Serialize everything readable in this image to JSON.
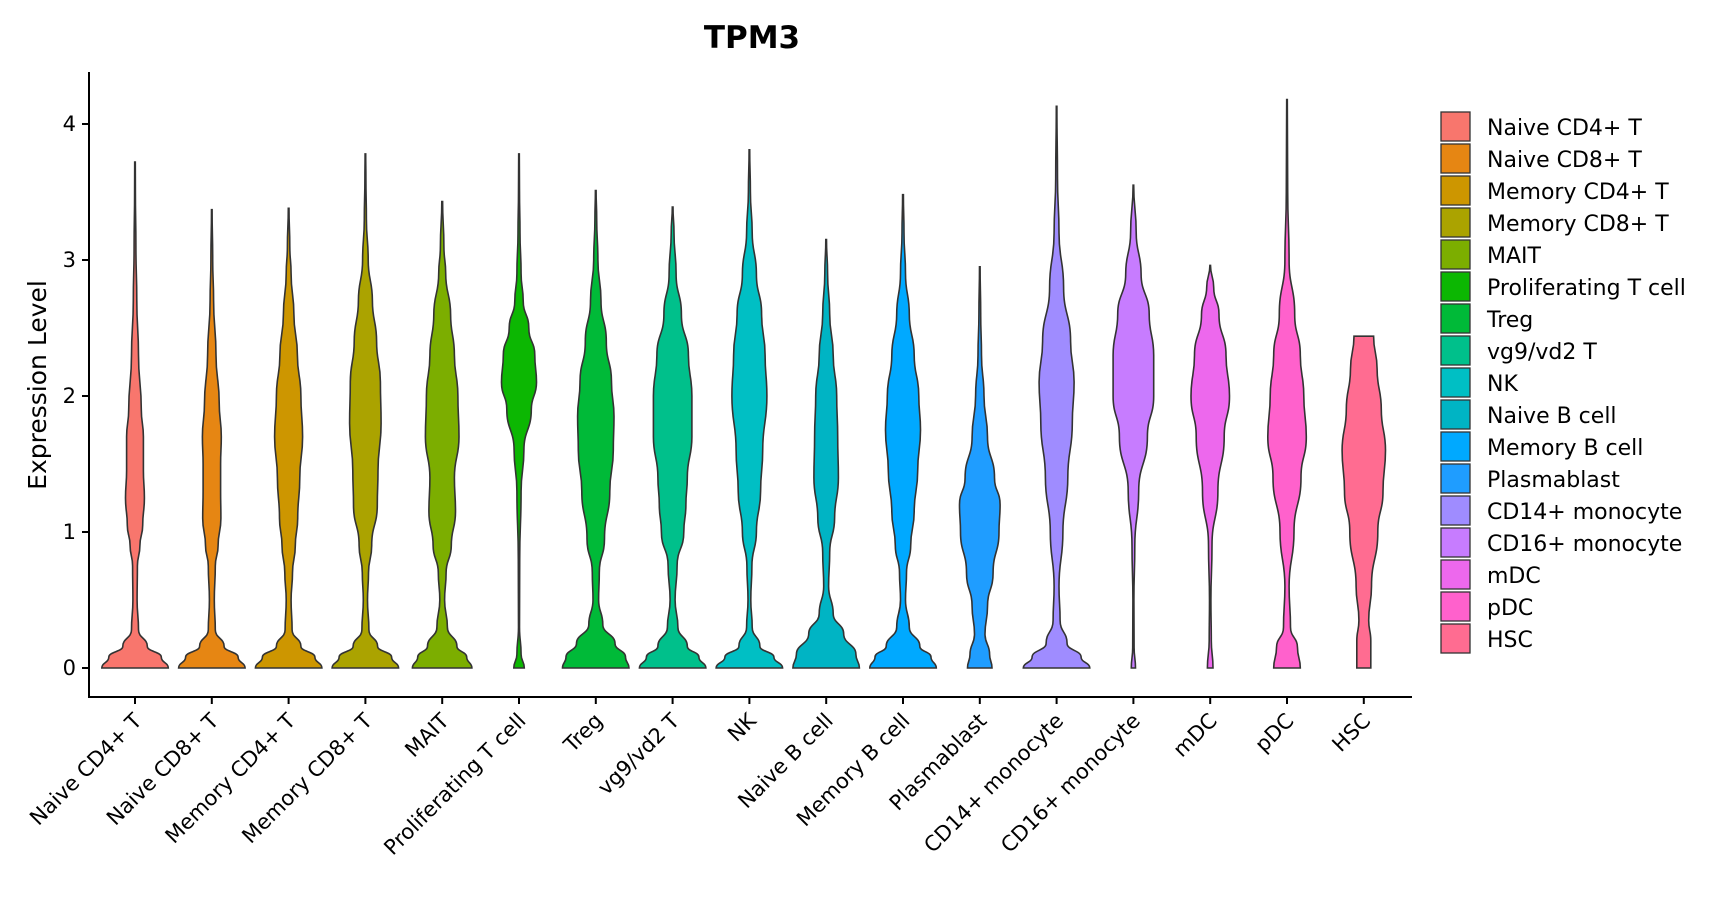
{
  "chart_data": {
    "type": "violin",
    "title": "TPM3",
    "xlabel": "",
    "ylabel": "Expression Level",
    "ylim": [
      -0.2,
      4.4
    ],
    "yticks": [
      0,
      1,
      2,
      3,
      4
    ],
    "grid": false,
    "legend_position": "right",
    "categories": [
      {
        "name": "Naive CD4+ T",
        "color": "#F8766D",
        "max": 3.72,
        "density": [
          [
            0,
            0.95
          ],
          [
            0.08,
            0.75
          ],
          [
            0.16,
            0.35
          ],
          [
            0.28,
            0.1
          ],
          [
            0.5,
            0.06
          ],
          [
            0.75,
            0.07
          ],
          [
            0.9,
            0.14
          ],
          [
            1.05,
            0.22
          ],
          [
            1.25,
            0.27
          ],
          [
            1.45,
            0.24
          ],
          [
            1.7,
            0.24
          ],
          [
            1.9,
            0.18
          ],
          [
            2.3,
            0.1
          ],
          [
            2.7,
            0.05
          ],
          [
            3.1,
            0.025
          ],
          [
            3.5,
            0.012
          ],
          [
            3.72,
            0.008
          ]
        ]
      },
      {
        "name": "Naive CD8+ T",
        "color": "#E68613",
        "max": 3.37,
        "density": [
          [
            0,
            0.95
          ],
          [
            0.08,
            0.75
          ],
          [
            0.16,
            0.35
          ],
          [
            0.28,
            0.1
          ],
          [
            0.5,
            0.07
          ],
          [
            0.75,
            0.1
          ],
          [
            0.9,
            0.18
          ],
          [
            1.1,
            0.26
          ],
          [
            1.3,
            0.25
          ],
          [
            1.5,
            0.25
          ],
          [
            1.7,
            0.27
          ],
          [
            1.95,
            0.21
          ],
          [
            2.3,
            0.12
          ],
          [
            2.7,
            0.05
          ],
          [
            3.0,
            0.025
          ],
          [
            3.37,
            0.008
          ]
        ]
      },
      {
        "name": "Memory CD4+ T",
        "color": "#CD9600",
        "max": 3.38,
        "density": [
          [
            0,
            0.95
          ],
          [
            0.08,
            0.75
          ],
          [
            0.16,
            0.35
          ],
          [
            0.28,
            0.1
          ],
          [
            0.5,
            0.07
          ],
          [
            0.7,
            0.11
          ],
          [
            0.9,
            0.19
          ],
          [
            1.1,
            0.26
          ],
          [
            1.4,
            0.32
          ],
          [
            1.7,
            0.4
          ],
          [
            2.0,
            0.35
          ],
          [
            2.3,
            0.25
          ],
          [
            2.6,
            0.15
          ],
          [
            2.9,
            0.07
          ],
          [
            3.1,
            0.035
          ],
          [
            3.38,
            0.01
          ]
        ]
      },
      {
        "name": "Memory CD8+ T",
        "color": "#ABA300",
        "max": 3.78,
        "density": [
          [
            0,
            0.95
          ],
          [
            0.08,
            0.75
          ],
          [
            0.16,
            0.35
          ],
          [
            0.28,
            0.1
          ],
          [
            0.5,
            0.06
          ],
          [
            0.7,
            0.09
          ],
          [
            0.9,
            0.18
          ],
          [
            1.2,
            0.34
          ],
          [
            1.45,
            0.36
          ],
          [
            1.8,
            0.45
          ],
          [
            2.1,
            0.43
          ],
          [
            2.4,
            0.32
          ],
          [
            2.7,
            0.2
          ],
          [
            3.0,
            0.08
          ],
          [
            3.3,
            0.03
          ],
          [
            3.6,
            0.015
          ],
          [
            3.78,
            0.008
          ]
        ]
      },
      {
        "name": "MAIT",
        "color": "#7CAE00",
        "max": 3.43,
        "density": [
          [
            0,
            0.85
          ],
          [
            0.08,
            0.7
          ],
          [
            0.16,
            0.42
          ],
          [
            0.3,
            0.15
          ],
          [
            0.5,
            0.07
          ],
          [
            0.7,
            0.11
          ],
          [
            0.9,
            0.26
          ],
          [
            1.15,
            0.38
          ],
          [
            1.4,
            0.35
          ],
          [
            1.7,
            0.48
          ],
          [
            2.0,
            0.45
          ],
          [
            2.3,
            0.35
          ],
          [
            2.6,
            0.24
          ],
          [
            2.9,
            0.1
          ],
          [
            3.1,
            0.05
          ],
          [
            3.43,
            0.01
          ]
        ]
      },
      {
        "name": "Proliferating T cell",
        "color": "#0CB702",
        "max": 3.78,
        "density": [
          [
            0,
            0.15
          ],
          [
            0.1,
            0.06
          ],
          [
            0.3,
            0.015
          ],
          [
            0.8,
            0.02
          ],
          [
            1.3,
            0.06
          ],
          [
            1.6,
            0.14
          ],
          [
            1.9,
            0.35
          ],
          [
            2.1,
            0.5
          ],
          [
            2.3,
            0.45
          ],
          [
            2.5,
            0.28
          ],
          [
            2.7,
            0.12
          ],
          [
            2.9,
            0.06
          ],
          [
            3.2,
            0.03
          ],
          [
            3.5,
            0.015
          ],
          [
            3.78,
            0.008
          ]
        ]
      },
      {
        "name": "Treg",
        "color": "#00BA38",
        "max": 3.51,
        "density": [
          [
            0,
            0.95
          ],
          [
            0.08,
            0.85
          ],
          [
            0.18,
            0.55
          ],
          [
            0.32,
            0.2
          ],
          [
            0.5,
            0.08
          ],
          [
            0.7,
            0.1
          ],
          [
            0.95,
            0.25
          ],
          [
            1.3,
            0.4
          ],
          [
            1.6,
            0.5
          ],
          [
            1.85,
            0.52
          ],
          [
            2.1,
            0.45
          ],
          [
            2.4,
            0.3
          ],
          [
            2.7,
            0.15
          ],
          [
            3.0,
            0.06
          ],
          [
            3.3,
            0.025
          ],
          [
            3.51,
            0.01
          ]
        ]
      },
      {
        "name": "vg9/vd2 T",
        "color": "#00C08B",
        "max": 3.39,
        "density": [
          [
            0,
            0.95
          ],
          [
            0.08,
            0.75
          ],
          [
            0.16,
            0.42
          ],
          [
            0.3,
            0.15
          ],
          [
            0.5,
            0.07
          ],
          [
            0.75,
            0.13
          ],
          [
            1.0,
            0.32
          ],
          [
            1.2,
            0.38
          ],
          [
            1.4,
            0.42
          ],
          [
            1.7,
            0.55
          ],
          [
            2.0,
            0.55
          ],
          [
            2.3,
            0.45
          ],
          [
            2.6,
            0.25
          ],
          [
            2.9,
            0.1
          ],
          [
            3.2,
            0.04
          ],
          [
            3.39,
            0.01
          ]
        ]
      },
      {
        "name": "NK",
        "color": "#00BFC4",
        "max": 3.81,
        "density": [
          [
            0,
            0.95
          ],
          [
            0.08,
            0.7
          ],
          [
            0.16,
            0.3
          ],
          [
            0.3,
            0.08
          ],
          [
            0.5,
            0.04
          ],
          [
            0.75,
            0.07
          ],
          [
            1.0,
            0.2
          ],
          [
            1.3,
            0.32
          ],
          [
            1.6,
            0.38
          ],
          [
            2.0,
            0.5
          ],
          [
            2.3,
            0.45
          ],
          [
            2.6,
            0.35
          ],
          [
            2.9,
            0.2
          ],
          [
            3.2,
            0.08
          ],
          [
            3.5,
            0.03
          ],
          [
            3.81,
            0.008
          ]
        ]
      },
      {
        "name": "Naive B cell",
        "color": "#00B4C4",
        "max": 3.15,
        "density": [
          [
            0,
            0.95
          ],
          [
            0.1,
            0.85
          ],
          [
            0.25,
            0.5
          ],
          [
            0.4,
            0.2
          ],
          [
            0.6,
            0.07
          ],
          [
            0.85,
            0.1
          ],
          [
            1.1,
            0.24
          ],
          [
            1.4,
            0.35
          ],
          [
            1.7,
            0.33
          ],
          [
            2.0,
            0.3
          ],
          [
            2.3,
            0.2
          ],
          [
            2.6,
            0.1
          ],
          [
            2.9,
            0.04
          ],
          [
            3.15,
            0.01
          ]
        ]
      },
      {
        "name": "Memory B cell",
        "color": "#00A9FF",
        "max": 3.48,
        "density": [
          [
            0,
            0.95
          ],
          [
            0.08,
            0.8
          ],
          [
            0.16,
            0.48
          ],
          [
            0.3,
            0.18
          ],
          [
            0.5,
            0.07
          ],
          [
            0.7,
            0.1
          ],
          [
            0.9,
            0.22
          ],
          [
            1.15,
            0.32
          ],
          [
            1.45,
            0.42
          ],
          [
            1.75,
            0.5
          ],
          [
            2.0,
            0.45
          ],
          [
            2.3,
            0.32
          ],
          [
            2.6,
            0.18
          ],
          [
            2.9,
            0.07
          ],
          [
            3.2,
            0.03
          ],
          [
            3.48,
            0.01
          ]
        ]
      },
      {
        "name": "Plasmablast",
        "color": "#1F9DFF",
        "max": 2.95,
        "density": [
          [
            0,
            0.35
          ],
          [
            0.1,
            0.28
          ],
          [
            0.25,
            0.15
          ],
          [
            0.45,
            0.22
          ],
          [
            0.7,
            0.38
          ],
          [
            1.0,
            0.55
          ],
          [
            1.2,
            0.58
          ],
          [
            1.4,
            0.42
          ],
          [
            1.7,
            0.22
          ],
          [
            2.0,
            0.12
          ],
          [
            2.3,
            0.05
          ],
          [
            2.6,
            0.025
          ],
          [
            2.95,
            0.008
          ]
        ]
      },
      {
        "name": "CD14+ monocyte",
        "color": "#9F8CFF",
        "max": 4.13,
        "density": [
          [
            0,
            0.95
          ],
          [
            0.08,
            0.7
          ],
          [
            0.18,
            0.3
          ],
          [
            0.35,
            0.1
          ],
          [
            0.6,
            0.07
          ],
          [
            1.0,
            0.18
          ],
          [
            1.4,
            0.32
          ],
          [
            1.8,
            0.45
          ],
          [
            2.1,
            0.5
          ],
          [
            2.4,
            0.4
          ],
          [
            2.8,
            0.2
          ],
          [
            3.2,
            0.07
          ],
          [
            3.6,
            0.025
          ],
          [
            4.13,
            0.008
          ]
        ]
      },
      {
        "name": "CD16+ monocyte",
        "color": "#C77CFF",
        "max": 3.55,
        "density": [
          [
            0,
            0.06
          ],
          [
            0.15,
            0.02
          ],
          [
            0.5,
            0.015
          ],
          [
            0.9,
            0.04
          ],
          [
            1.3,
            0.15
          ],
          [
            1.7,
            0.4
          ],
          [
            2.0,
            0.58
          ],
          [
            2.3,
            0.58
          ],
          [
            2.6,
            0.45
          ],
          [
            2.9,
            0.22
          ],
          [
            3.2,
            0.08
          ],
          [
            3.55,
            0.008
          ]
        ]
      },
      {
        "name": "mDC",
        "color": "#ED68ED",
        "max": 2.96,
        "density": [
          [
            0,
            0.08
          ],
          [
            0.2,
            0.03
          ],
          [
            0.5,
            0.02
          ],
          [
            0.9,
            0.05
          ],
          [
            1.3,
            0.22
          ],
          [
            1.7,
            0.4
          ],
          [
            2.0,
            0.55
          ],
          [
            2.3,
            0.45
          ],
          [
            2.6,
            0.25
          ],
          [
            2.8,
            0.1
          ],
          [
            2.96,
            0.01
          ]
        ]
      },
      {
        "name": "pDC",
        "color": "#FF61CC",
        "max": 4.18,
        "density": [
          [
            0,
            0.38
          ],
          [
            0.15,
            0.3
          ],
          [
            0.3,
            0.1
          ],
          [
            0.6,
            0.06
          ],
          [
            1.0,
            0.2
          ],
          [
            1.4,
            0.4
          ],
          [
            1.7,
            0.55
          ],
          [
            2.0,
            0.48
          ],
          [
            2.3,
            0.38
          ],
          [
            2.6,
            0.22
          ],
          [
            3.0,
            0.06
          ],
          [
            3.5,
            0.02
          ],
          [
            4.18,
            0.008
          ]
        ]
      },
      {
        "name": "HSC",
        "color": "#FF6C91",
        "max": 2.44,
        "density": [
          [
            0,
            0.2
          ],
          [
            0.2,
            0.2
          ],
          [
            0.35,
            0.14
          ],
          [
            0.6,
            0.22
          ],
          [
            1.0,
            0.4
          ],
          [
            1.3,
            0.55
          ],
          [
            1.6,
            0.62
          ],
          [
            1.9,
            0.5
          ],
          [
            2.2,
            0.38
          ],
          [
            2.44,
            0.28
          ]
        ]
      }
    ]
  }
}
